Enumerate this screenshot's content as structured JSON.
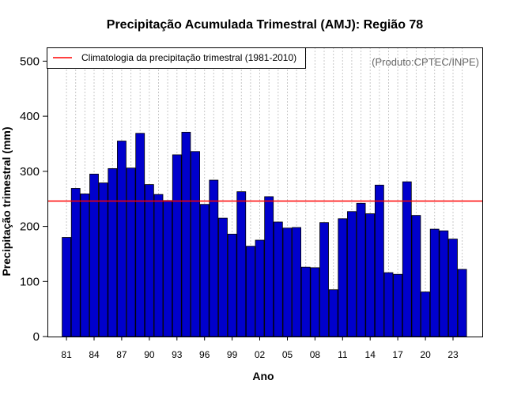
{
  "chart_data": {
    "type": "bar",
    "title": "Precipitação Acumulada Trimestral (AMJ): Região 78",
    "xlabel": "Ano",
    "ylabel": "Precipitação trimestral (mm)",
    "source": "(Produto:CPTEC/INPE)",
    "legend": {
      "label": "Climatologia da precipitação trimestral (1981-2010)",
      "placement": "top-left"
    },
    "climatology": 246,
    "ylim": [
      0,
      525
    ],
    "yticks": [
      0,
      100,
      200,
      300,
      400,
      500
    ],
    "grid": "vertical-dotted",
    "categories": [
      "1981",
      "1982",
      "1983",
      "1984",
      "1985",
      "1986",
      "1987",
      "1988",
      "1989",
      "1990",
      "1991",
      "1992",
      "1993",
      "1994",
      "1995",
      "1996",
      "1997",
      "1998",
      "1999",
      "2000",
      "2001",
      "2002",
      "2003",
      "2004",
      "2005",
      "2006",
      "2007",
      "2008",
      "2009",
      "2010",
      "2011",
      "2012",
      "2013",
      "2014",
      "2015",
      "2016",
      "2017",
      "2018",
      "2019",
      "2020",
      "2021",
      "2022",
      "2023",
      "2024"
    ],
    "xtick_labels": [
      "81",
      "84",
      "87",
      "90",
      "93",
      "96",
      "99",
      "02",
      "05",
      "08",
      "11",
      "14",
      "17",
      "20",
      "23"
    ],
    "xtick_indices": [
      0,
      3,
      6,
      9,
      12,
      15,
      18,
      21,
      24,
      27,
      30,
      33,
      36,
      39,
      42
    ],
    "values": [
      180,
      269,
      259,
      295,
      279,
      305,
      355,
      306,
      369,
      276,
      258,
      247,
      330,
      371,
      336,
      240,
      284,
      215,
      186,
      263,
      164,
      175,
      254,
      208,
      197,
      198,
      126,
      125,
      207,
      85,
      214,
      227,
      242,
      223,
      275,
      116,
      113,
      281,
      220,
      81,
      195,
      192,
      177,
      122
    ],
    "colors": {
      "bar_fill": "#0000cc",
      "bar_stroke": "#000000",
      "climatology_line": "#ff0000",
      "grid": "#c8c8c8"
    }
  }
}
